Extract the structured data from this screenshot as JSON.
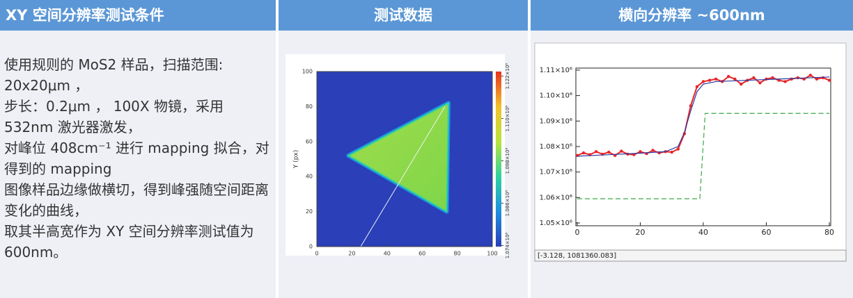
{
  "headers": [
    "XY 空间分辨率测试条件",
    "测试数据",
    "横向分辨率 ~600nm"
  ],
  "description": [
    "使用规则的 MoS2 样品，扫描范围: 20x20μm ，",
    "步长：0.2μm ， 100X 物镜，采用 532nm 激光器激发，",
    "对峰位 408cm⁻¹ 进行 mapping 拟合，对得到的 mapping",
    "图像样品边缘做横切，得到峰强随空间距离变化的曲线，",
    "取其半高宽作为 XY 空间分辨率测试值为 600nm。"
  ],
  "chart_data": [
    {
      "type": "heatmap",
      "ylabel": "Y (px)",
      "xlim": [
        0,
        100
      ],
      "xticks": [
        0,
        20,
        40,
        60,
        80,
        100
      ],
      "ylim": [
        0,
        100
      ],
      "yticks": [
        0,
        20,
        40,
        60,
        80,
        100
      ],
      "clim": [
        1073700,
        1123300
      ],
      "cticks": [
        {
          "value": 1074000,
          "label": "1.074×10⁶"
        },
        {
          "value": 1086000,
          "label": "1.086×10⁶"
        },
        {
          "value": 1098000,
          "label": "1.098×10⁶"
        },
        {
          "value": 1110000,
          "label": "1.110×10⁶"
        },
        {
          "value": 1122000,
          "label": "1.122×10⁶"
        }
      ],
      "colors": [
        "#2a3fb8",
        "#1e8fe0",
        "#2fd3a0",
        "#b9e43a",
        "#f2c12a",
        "#e8321e"
      ]
    },
    {
      "type": "line",
      "xlim": [
        0,
        80
      ],
      "xticks": [
        0,
        20,
        40,
        60,
        80
      ],
      "ylim": [
        1048900,
        1110800
      ],
      "yticks": [
        {
          "value": 1050000,
          "label": "1.05×10⁶"
        },
        {
          "value": 1060000,
          "label": "1.06×10⁶"
        },
        {
          "value": 1070000,
          "label": "1.07×10⁶"
        },
        {
          "value": 1080000,
          "label": "1.08×10⁶"
        },
        {
          "value": 1090000,
          "label": "1.09×10⁶"
        },
        {
          "value": 1100000,
          "label": "1.10×10⁶"
        },
        {
          "value": 1110000,
          "label": "1.11×10⁶"
        }
      ],
      "status": "[-3.128, 1081360.083]",
      "series": [
        {
          "color": "#3aa845",
          "dash": true,
          "x": [
            0,
            38.9,
            40.6,
            80
          ],
          "values": [
            1059500,
            1059500,
            1093000,
            1093000
          ]
        },
        {
          "color": "#e8262a",
          "markers": true,
          "x": [
            0,
            2,
            4,
            6,
            8,
            10,
            12,
            14,
            16,
            18,
            20,
            22,
            24,
            26,
            28,
            30,
            32,
            34,
            36,
            38,
            40,
            42,
            44,
            46,
            48,
            50,
            52,
            54,
            56,
            58,
            60,
            62,
            64,
            66,
            68,
            70,
            72,
            74,
            76,
            78,
            80
          ],
          "values": [
            1076500,
            1077500,
            1076800,
            1078000,
            1077000,
            1077800,
            1076500,
            1078200,
            1077000,
            1076800,
            1078000,
            1077200,
            1078500,
            1077500,
            1078000,
            1077800,
            1079000,
            1085000,
            1096000,
            1103500,
            1105500,
            1106000,
            1106500,
            1105500,
            1107500,
            1106500,
            1104500,
            1106000,
            1107000,
            1105000,
            1106500,
            1107000,
            1106000,
            1105500,
            1106500,
            1107000,
            1106500,
            1108000,
            1106500,
            1107000,
            1106000
          ]
        },
        {
          "color": "#2a3aa0",
          "x": [
            0,
            10,
            20,
            28,
            32,
            34,
            36,
            38,
            40,
            44,
            50,
            60,
            70,
            80
          ],
          "values": [
            1076200,
            1076800,
            1077400,
            1078000,
            1080000,
            1085500,
            1094000,
            1101500,
            1104500,
            1105500,
            1105800,
            1106300,
            1106800,
            1107300
          ]
        }
      ]
    }
  ]
}
